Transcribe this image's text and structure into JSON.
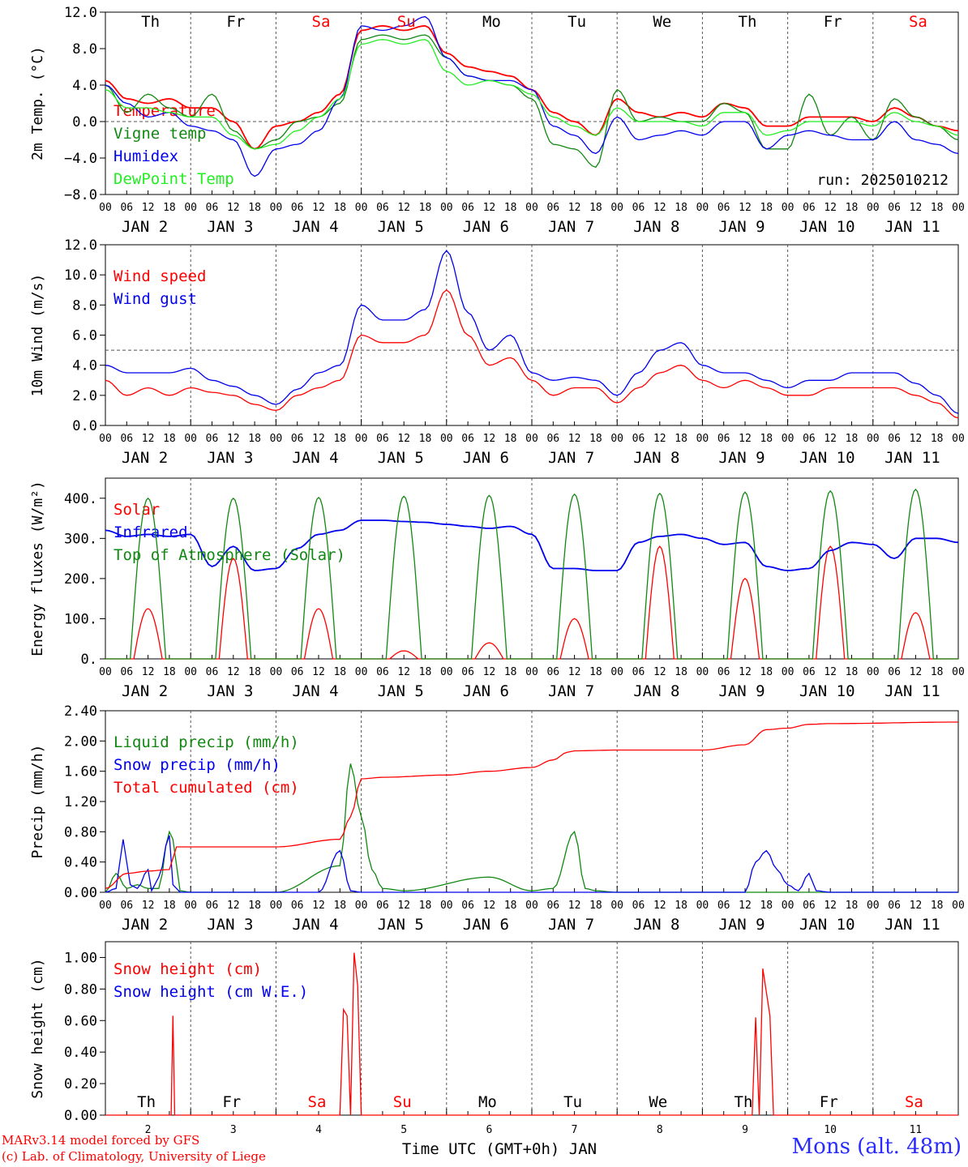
{
  "colors": {
    "red": "#ff0000",
    "green": "#118811",
    "lightgreen": "#22ee22",
    "blue": "#0000ee",
    "frame": "#000000",
    "weekend": "#ff0000"
  },
  "days_top": [
    "Th",
    "Fr",
    "Sa",
    "Su",
    "Mo",
    "Tu",
    "We",
    "Th",
    "Fr",
    "Sa"
  ],
  "weekend_days": [
    "Sa",
    "Su"
  ],
  "hour_ticks": [
    "00",
    "06",
    "12",
    "18"
  ],
  "date_labels": [
    "JAN  2",
    "JAN  3",
    "JAN  4",
    "JAN  5",
    "JAN  6",
    "JAN  7",
    "JAN  8",
    "JAN  9",
    "JAN 10",
    "JAN 11"
  ],
  "bottom_day_numbers": [
    "2",
    "3",
    "4",
    "5",
    "6",
    "7",
    "8",
    "9",
    "10",
    "11"
  ],
  "footer": {
    "xlabel": "Time UTC (GMT+0h) JAN",
    "credit1": "MARv3.14 model forced by GFS",
    "credit2": "(c) Lab. of Climatology, University of Liege",
    "station": "Mons (alt. 48m)"
  },
  "chart_data": [
    {
      "type": "line",
      "ylabel": "2m Temp. (°C)",
      "ylim": [
        -8,
        12
      ],
      "yticks": [
        "12.0",
        "8.0",
        "4.0",
        "0.0",
        "−4.0",
        "−8.0"
      ],
      "reference_line": 0,
      "run_label": "run: 2025010212",
      "x_hours": [
        0,
        6,
        12,
        18,
        24,
        30,
        36,
        42,
        48,
        54,
        60,
        66,
        72,
        78,
        84,
        90,
        96,
        102,
        108,
        114,
        120,
        126,
        132,
        138,
        144,
        150,
        156,
        162,
        168,
        174,
        180,
        186,
        192,
        198,
        204,
        210,
        216,
        222,
        228,
        234,
        240
      ],
      "series": [
        {
          "name": "Temperature",
          "color": "red",
          "values": [
            4.5,
            2.5,
            2.0,
            2.5,
            1.5,
            1.5,
            0.0,
            -3.0,
            -0.5,
            0.0,
            1.0,
            3.0,
            10.0,
            10.5,
            10.0,
            10.5,
            7.5,
            6.0,
            5.5,
            5.0,
            3.5,
            1.0,
            0.0,
            -1.5,
            2.5,
            1.0,
            0.5,
            1.0,
            0.5,
            2.0,
            1.5,
            -0.5,
            -0.5,
            0.5,
            0.5,
            0.5,
            0.0,
            1.5,
            0.5,
            -0.5,
            -1.0
          ]
        },
        {
          "name": "Vigne temp",
          "color": "green",
          "values": [
            4.0,
            1.0,
            3.0,
            1.5,
            0.5,
            3.0,
            -1.0,
            -3.0,
            -2.0,
            0.0,
            0.5,
            2.0,
            9.0,
            9.5,
            9.0,
            9.5,
            7.0,
            5.0,
            4.5,
            4.0,
            2.5,
            -2.5,
            -3.0,
            -5.0,
            3.5,
            0.0,
            0.5,
            0.0,
            0.0,
            2.0,
            1.0,
            -3.0,
            -3.0,
            3.0,
            -1.5,
            0.5,
            -2.0,
            2.5,
            0.5,
            -0.5,
            -2.0
          ]
        },
        {
          "name": "Humidex",
          "color": "blue",
          "values": [
            4.0,
            2.0,
            0.5,
            1.0,
            -0.5,
            -1.0,
            -2.0,
            -6.0,
            -3.0,
            -2.5,
            -1.0,
            2.5,
            10.5,
            10.0,
            10.5,
            11.5,
            7.0,
            5.0,
            4.5,
            4.5,
            3.5,
            -0.5,
            -1.5,
            -3.5,
            0.5,
            -2.0,
            -1.5,
            -1.0,
            -1.5,
            0.0,
            0.0,
            -3.0,
            -1.5,
            -1.0,
            -1.5,
            -2.0,
            -2.0,
            0.0,
            -2.0,
            -2.5,
            -3.5
          ]
        },
        {
          "name": "DewPoint Temp",
          "color": "lightgreen",
          "values": [
            3.5,
            1.5,
            1.5,
            1.0,
            0.5,
            0.5,
            -1.5,
            -3.0,
            -2.5,
            -1.0,
            0.5,
            2.5,
            8.5,
            9.0,
            8.5,
            9.0,
            5.5,
            4.0,
            4.5,
            4.0,
            3.0,
            0.5,
            -0.5,
            -1.5,
            1.5,
            0.0,
            0.0,
            0.0,
            -0.5,
            1.0,
            1.0,
            -1.5,
            -1.0,
            0.0,
            0.0,
            0.0,
            -0.5,
            1.0,
            0.0,
            -0.5,
            -1.5
          ]
        }
      ]
    },
    {
      "type": "line",
      "ylabel": "10m Wind (m/s)",
      "ylim": [
        0,
        12
      ],
      "yticks": [
        "12.0",
        "10.0",
        "8.0",
        "6.0",
        "4.0",
        "2.0",
        "0.0"
      ],
      "reference_line": 5,
      "x_hours": [
        0,
        6,
        12,
        18,
        24,
        30,
        36,
        42,
        48,
        54,
        60,
        66,
        72,
        78,
        84,
        90,
        96,
        102,
        108,
        114,
        120,
        126,
        132,
        138,
        144,
        150,
        156,
        162,
        168,
        174,
        180,
        186,
        192,
        198,
        204,
        210,
        216,
        222,
        228,
        234,
        240
      ],
      "series": [
        {
          "name": "Wind speed",
          "color": "red",
          "values": [
            3.0,
            2.0,
            2.5,
            2.0,
            2.5,
            2.2,
            2.0,
            1.4,
            1.0,
            2.0,
            2.5,
            3.0,
            6.0,
            5.5,
            5.5,
            6.0,
            9.0,
            6.0,
            4.0,
            4.5,
            3.0,
            2.0,
            2.5,
            2.5,
            1.5,
            2.5,
            3.5,
            4.0,
            3.0,
            2.5,
            3.0,
            2.5,
            2.0,
            2.0,
            2.5,
            2.5,
            2.5,
            2.5,
            2.0,
            1.5,
            0.5
          ]
        },
        {
          "name": "Wind gust",
          "color": "blue",
          "values": [
            4.0,
            3.5,
            3.5,
            3.5,
            3.8,
            3.0,
            2.6,
            2.0,
            1.4,
            2.4,
            3.5,
            4.0,
            8.0,
            7.0,
            7.0,
            7.7,
            11.6,
            7.5,
            5.0,
            6.0,
            3.5,
            3.0,
            3.2,
            3.0,
            2.0,
            3.5,
            5.0,
            5.5,
            4.0,
            3.5,
            3.5,
            3.0,
            2.5,
            3.0,
            3.0,
            3.5,
            3.5,
            3.5,
            2.8,
            2.0,
            0.8
          ]
        }
      ]
    },
    {
      "type": "line",
      "ylabel": "Energy fluxes (W/m²)",
      "ylim": [
        0,
        450
      ],
      "yticks": [
        "400.",
        "300.",
        "200.",
        "100.",
        "0."
      ],
      "series": [
        {
          "name": "Solar",
          "color": "red",
          "daily_peak": [
            125,
            250,
            125,
            20,
            40,
            100,
            280,
            200,
            280,
            115
          ]
        },
        {
          "name": "Infrared",
          "color": "blue",
          "x_hours": [
            0,
            6,
            12,
            18,
            24,
            30,
            36,
            42,
            48,
            54,
            60,
            66,
            72,
            78,
            84,
            90,
            96,
            102,
            108,
            114,
            120,
            126,
            132,
            138,
            144,
            150,
            156,
            162,
            168,
            174,
            180,
            186,
            192,
            198,
            204,
            210,
            216,
            222,
            228,
            234,
            240
          ],
          "values": [
            320,
            305,
            310,
            305,
            310,
            230,
            280,
            220,
            225,
            275,
            310,
            320,
            345,
            345,
            342,
            340,
            335,
            330,
            325,
            330,
            310,
            225,
            225,
            220,
            220,
            290,
            305,
            310,
            300,
            285,
            290,
            230,
            220,
            225,
            270,
            290,
            285,
            250,
            300,
            300,
            290
          ]
        },
        {
          "name": "Top of Atmosphere (Solar)",
          "color": "green",
          "daily_peak": [
            400,
            400,
            402,
            405,
            407,
            410,
            412,
            415,
            418,
            422
          ]
        }
      ]
    },
    {
      "type": "line",
      "ylabel": "Precip (mm/h)",
      "ylim": [
        0,
        2.4
      ],
      "yticks": [
        "2.40",
        "2.00",
        "1.60",
        "1.20",
        "0.80",
        "0.40",
        "0.00"
      ],
      "series": [
        {
          "name": "Liquid precip (mm/h)",
          "color": "green",
          "x_hours": [
            0,
            3,
            6,
            9,
            12,
            15,
            18,
            19,
            21,
            24,
            48,
            66,
            69,
            72,
            75,
            78,
            84,
            108,
            120,
            126,
            132,
            135,
            138,
            144,
            192,
            240
          ],
          "values": [
            0,
            0.25,
            0.05,
            0.1,
            0.05,
            0.05,
            0.8,
            0.7,
            0.02,
            0,
            0,
            0.35,
            1.7,
            1.0,
            0.3,
            0.05,
            0.02,
            0.2,
            0.02,
            0.05,
            0.8,
            0.05,
            0.02,
            0,
            0,
            0
          ]
        },
        {
          "name": "Snow precip (mm/h)",
          "color": "blue",
          "x_hours": [
            0,
            3,
            5,
            7,
            9,
            12,
            13,
            15,
            18,
            19,
            21,
            24,
            60,
            66,
            69,
            72,
            180,
            183,
            186,
            189,
            192,
            195,
            198,
            200,
            204,
            240
          ],
          "values": [
            0,
            0.05,
            0.7,
            0.1,
            0.05,
            0.3,
            0.02,
            0.2,
            0.75,
            0.1,
            0,
            0,
            0,
            0.55,
            0.02,
            0,
            0,
            0.4,
            0.55,
            0.3,
            0.1,
            0.02,
            0.25,
            0.02,
            0,
            0
          ]
        },
        {
          "name": "Total cumulated (cm)",
          "color": "red",
          "x_hours": [
            0,
            6,
            12,
            18,
            20,
            24,
            48,
            66,
            69,
            72,
            78,
            96,
            108,
            120,
            126,
            130,
            132,
            144,
            168,
            180,
            186,
            192,
            198,
            204,
            240
          ],
          "values": [
            0.05,
            0.25,
            0.28,
            0.3,
            0.6,
            0.6,
            0.6,
            0.7,
            1.0,
            1.5,
            1.52,
            1.55,
            1.6,
            1.65,
            1.75,
            1.85,
            1.87,
            1.88,
            1.88,
            1.95,
            2.15,
            2.17,
            2.22,
            2.23,
            2.25
          ]
        }
      ]
    },
    {
      "type": "line",
      "ylabel": "Snow height (cm)",
      "ylim": [
        0,
        1.1
      ],
      "yticks": [
        "1.00",
        "0.80",
        "0.60",
        "0.40",
        "0.20",
        "0.00"
      ],
      "series": [
        {
          "name": "Snow height (cm)",
          "color": "red",
          "x_hours": [
            0,
            18.5,
            19,
            19.5,
            66,
            67,
            68,
            69,
            70,
            71,
            72,
            73,
            182,
            183,
            184,
            185,
            186,
            187,
            188,
            189,
            190,
            240
          ],
          "values": [
            0,
            0,
            0.63,
            0,
            0,
            0.67,
            0.63,
            0,
            1.03,
            0.82,
            0,
            0,
            0,
            0.62,
            0,
            0.93,
            0.78,
            0.63,
            0,
            0,
            0,
            0
          ]
        },
        {
          "name": "Snow height (cm W.E.)",
          "color": "blue",
          "values": []
        }
      ]
    }
  ]
}
